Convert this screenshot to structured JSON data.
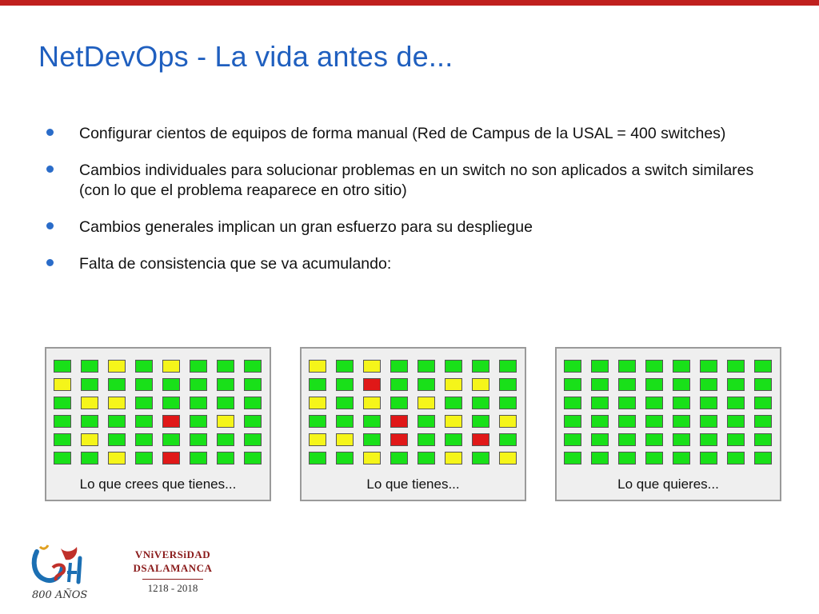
{
  "slide": {
    "title": "NetDevOps - La vida antes de...",
    "bullets": [
      "Configurar cientos de equipos de forma manual (Red de Campus de la USAL = 400 switches)",
      "Cambios individuales para solucionar problemas en un switch no son aplicados a switch similares (con lo que el problema reaparece en otro sitio)",
      "Cambios generales implican un gran esfuerzo para su despliegue",
      "Falta de consistencia que se va acumulando:"
    ]
  },
  "colors": {
    "accent_bar": "#c0201e",
    "title": "#1f5fbf",
    "ok": "#19e019",
    "warning": "#f5f51a",
    "error": "#e01818"
  },
  "panels": [
    {
      "caption": "Lo que crees que tienes...",
      "grid": [
        [
          "g",
          "g",
          "y",
          "g",
          "y",
          "g",
          "g",
          "g"
        ],
        [
          "y",
          "g",
          "g",
          "g",
          "g",
          "g",
          "g",
          "g"
        ],
        [
          "g",
          "y",
          "y",
          "g",
          "g",
          "g",
          "g",
          "g"
        ],
        [
          "g",
          "g",
          "g",
          "g",
          "r",
          "g",
          "y",
          "g"
        ],
        [
          "g",
          "y",
          "g",
          "g",
          "g",
          "g",
          "g",
          "g"
        ],
        [
          "g",
          "g",
          "y",
          "g",
          "r",
          "g",
          "g",
          "g"
        ]
      ]
    },
    {
      "caption": "Lo que tienes...",
      "grid": [
        [
          "y",
          "g",
          "y",
          "g",
          "g",
          "g",
          "g",
          "g"
        ],
        [
          "g",
          "g",
          "r",
          "g",
          "g",
          "y",
          "y",
          "g"
        ],
        [
          "y",
          "g",
          "y",
          "g",
          "y",
          "g",
          "g",
          "g"
        ],
        [
          "g",
          "g",
          "g",
          "r",
          "g",
          "y",
          "g",
          "y"
        ],
        [
          "y",
          "y",
          "g",
          "r",
          "g",
          "g",
          "r",
          "g"
        ],
        [
          "g",
          "g",
          "y",
          "g",
          "g",
          "y",
          "g",
          "y"
        ]
      ]
    },
    {
      "caption": "Lo que quieres...",
      "grid": [
        [
          "g",
          "g",
          "g",
          "g",
          "g",
          "g",
          "g",
          "g"
        ],
        [
          "g",
          "g",
          "g",
          "g",
          "g",
          "g",
          "g",
          "g"
        ],
        [
          "g",
          "g",
          "g",
          "g",
          "g",
          "g",
          "g",
          "g"
        ],
        [
          "g",
          "g",
          "g",
          "g",
          "g",
          "g",
          "g",
          "g"
        ],
        [
          "g",
          "g",
          "g",
          "g",
          "g",
          "g",
          "g",
          "g"
        ],
        [
          "g",
          "g",
          "g",
          "g",
          "g",
          "g",
          "g",
          "g"
        ]
      ]
    }
  ],
  "logos": {
    "usal_800": {
      "text": "USal",
      "caption": "800 AÑOS"
    },
    "universidad": {
      "line1": "VNiVERSiDAD",
      "line2": "DSALAMANCA",
      "years": "1218 - 2018"
    }
  }
}
